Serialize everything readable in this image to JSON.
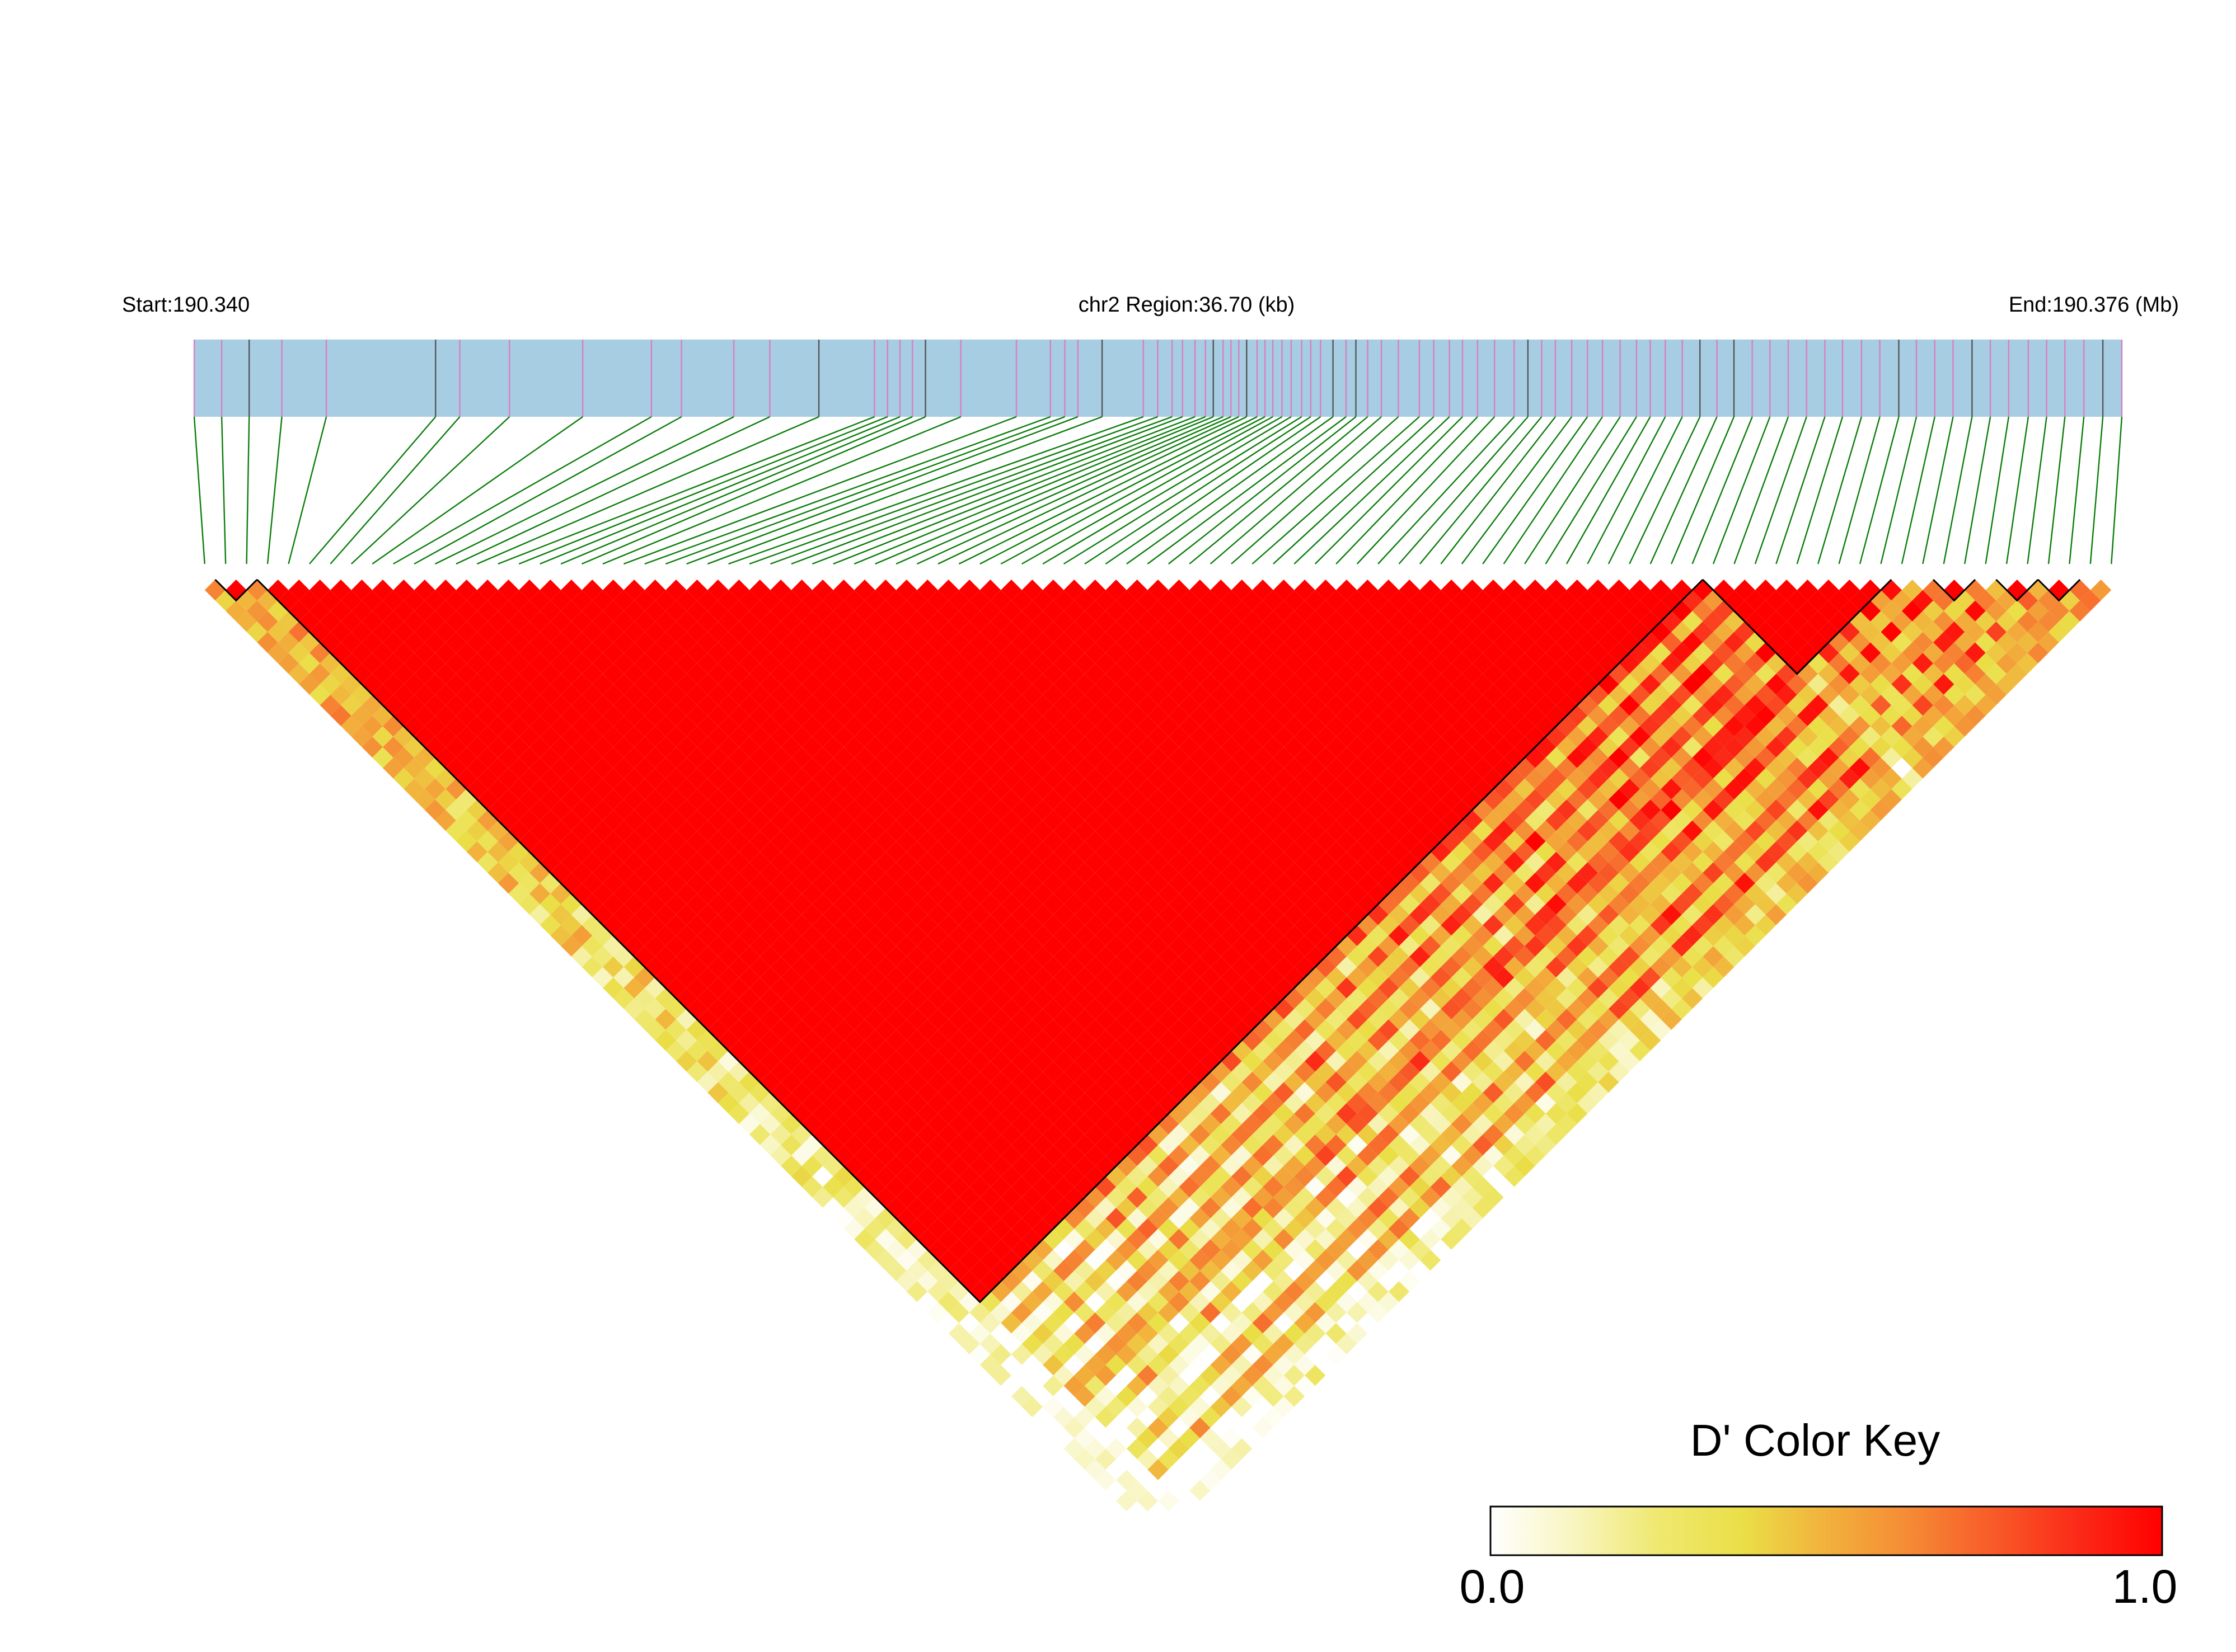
{
  "header": {
    "start_label": "Start:190.340",
    "region_label": "chr2 Region:36.70 (kb)",
    "end_label": "End:190.376 (Mb)"
  },
  "legend": {
    "title": "D' Color Key",
    "min_label": "0.0",
    "max_label": "1.0",
    "colors": [
      "#ffffff",
      "#f8f5c0",
      "#efe870",
      "#eadf47",
      "#f2b13c",
      "#f58a35",
      "#f85a28",
      "#fb2a18",
      "#ff0000"
    ]
  },
  "colors": {
    "track_fill": "#a6cde2",
    "snp_tick": "#d97fc3",
    "snp_tick_alt": "#555555",
    "connector": "#0a7d0a",
    "block_outline": "#000000"
  },
  "chart_data": {
    "type": "heatmap",
    "title": "D' Color Key",
    "chromosome": "chr2",
    "start_mb": 190.34,
    "end_mb": 190.376,
    "region_kb": 36.7,
    "n_snps": 92,
    "value_range": [
      0,
      1
    ],
    "snp_positions_mb": [
      190.34103,
      190.34145,
      190.34187,
      190.34237,
      190.34305,
      190.34472,
      190.34509,
      190.34585,
      190.34697,
      190.34802,
      190.34848,
      190.34928,
      190.34983,
      190.35058,
      190.35143,
      190.35163,
      190.35182,
      190.35201,
      190.35221,
      190.35275,
      190.3536,
      190.35412,
      190.35434,
      190.35454,
      190.35491,
      190.35554,
      190.35576,
      190.35598,
      190.35614,
      190.35633,
      190.35649,
      190.35661,
      190.35676,
      190.35688,
      190.357,
      190.35712,
      190.35728,
      190.3574,
      190.35752,
      190.35766,
      190.3578,
      190.35796,
      190.3581,
      190.35825,
      190.35844,
      190.35864,
      190.35879,
      190.35897,
      190.35918,
      190.35944,
      190.35976,
      190.35998,
      190.36022,
      190.36042,
      190.36065,
      190.36091,
      190.36121,
      190.36142,
      190.36163,
      190.36184,
      190.36209,
      190.36233,
      190.36256,
      190.36283,
      190.36308,
      190.36329,
      190.36352,
      190.36378,
      190.36405,
      190.36431,
      190.36457,
      190.36485,
      190.36512,
      190.3654,
      190.36568,
      190.36596,
      190.36623,
      190.36652,
      190.3668,
      190.36709,
      190.36736,
      190.36764,
      190.36792,
      190.36821,
      190.36849,
      190.36877,
      190.36907,
      190.36935,
      190.36963,
      190.36992,
      190.37021,
      190.3705
    ],
    "ld_blocks": [
      {
        "first_snp": 2,
        "last_snp": 3
      },
      {
        "first_snp": 4,
        "last_snp": 72
      },
      {
        "first_snp": 73,
        "last_snp": 81
      },
      {
        "first_snp": 84,
        "last_snp": 85
      },
      {
        "first_snp": 87,
        "last_snp": 88
      },
      {
        "first_snp": 89,
        "last_snp": 90
      }
    ],
    "dprime_model": {
      "in_block": 1.0,
      "block_edge_snps": [
        4,
        5,
        6,
        73
      ],
      "strong_ld_snps": [
        8,
        13,
        14,
        15,
        16,
        19,
        23,
        27,
        30,
        31,
        36,
        41,
        44,
        48,
        50,
        52,
        55,
        58,
        60,
        63,
        68
      ],
      "weak_ld_snps": [
        1,
        2,
        3,
        74,
        76,
        78,
        80,
        83,
        85,
        86,
        88,
        90,
        91,
        92
      ],
      "distance_decay": 0.62
    }
  }
}
